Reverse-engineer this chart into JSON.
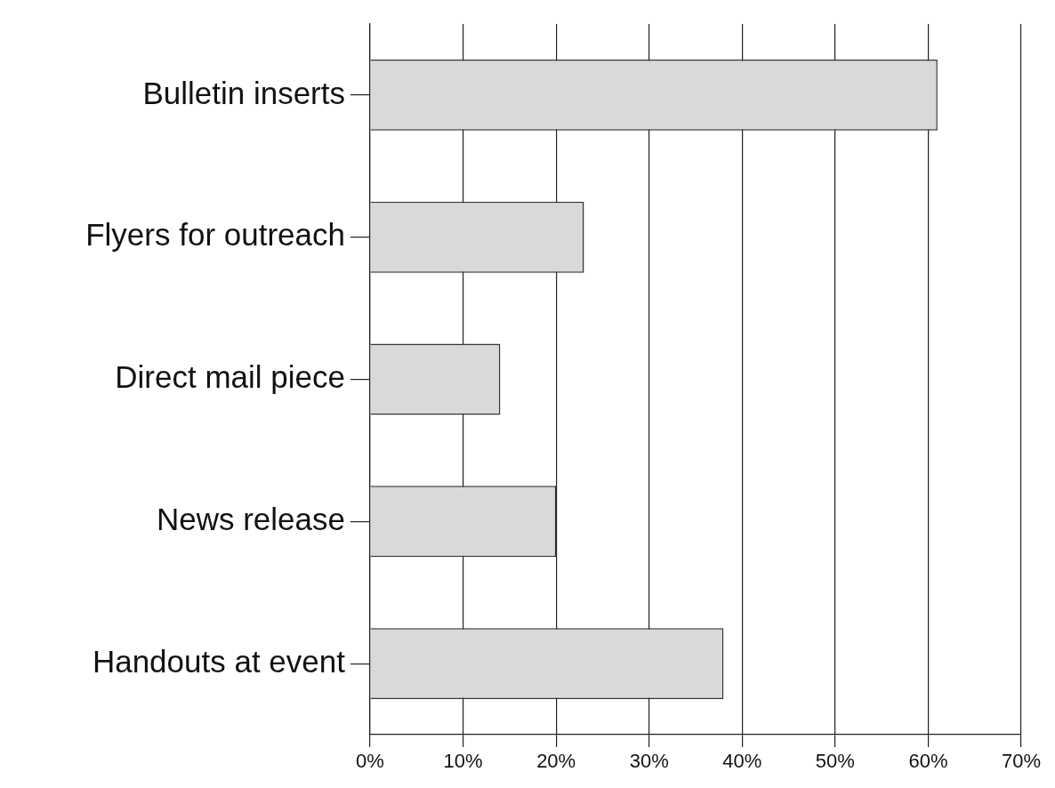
{
  "chart_data": {
    "type": "bar",
    "orientation": "horizontal",
    "categories": [
      "Bulletin inserts",
      "Flyers for outreach",
      "Direct mail piece",
      "News release",
      "Handouts at event"
    ],
    "values": [
      61,
      23,
      14,
      20,
      38
    ],
    "color": "#d9d9d9",
    "xlim": [
      0,
      70
    ],
    "xticks": [
      {
        "value": 0,
        "label": "0%"
      },
      {
        "value": 10,
        "label": "10%"
      },
      {
        "value": 20,
        "label": "20%"
      },
      {
        "value": 30,
        "label": "30%"
      },
      {
        "value": 40,
        "label": "40%"
      },
      {
        "value": 50,
        "label": "50%"
      },
      {
        "value": 60,
        "label": "60%"
      },
      {
        "value": 70,
        "label": "70%"
      }
    ],
    "grid": "x",
    "legend": false
  }
}
